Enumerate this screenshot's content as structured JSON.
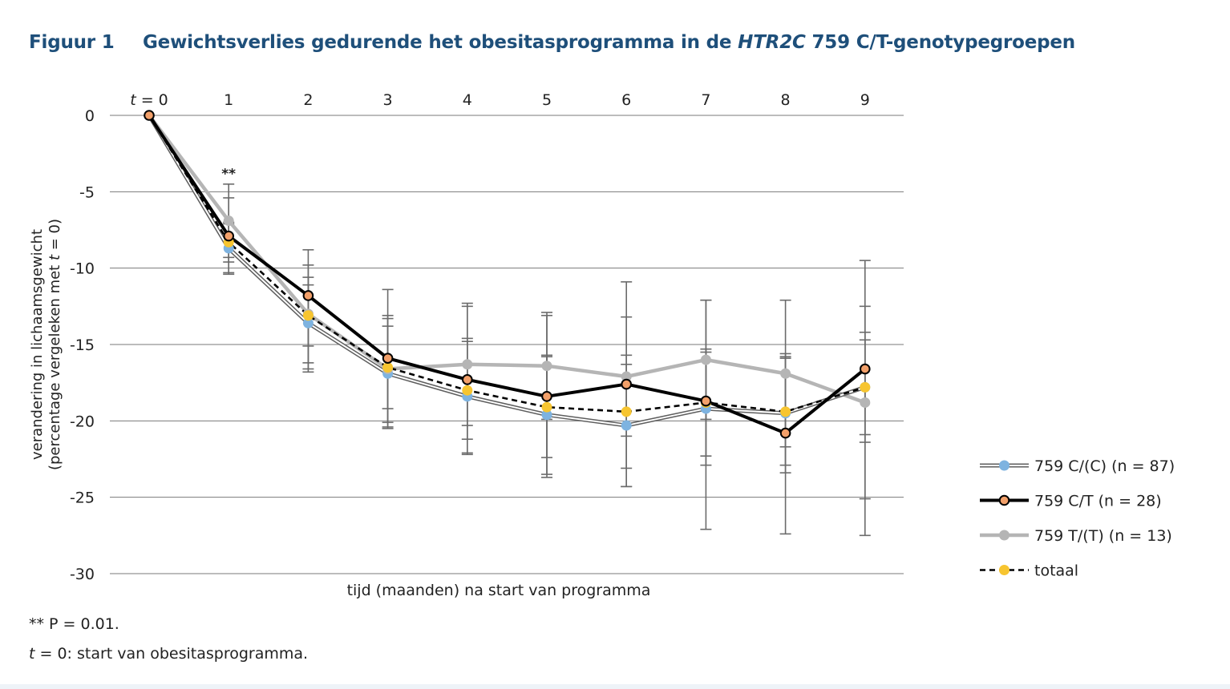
{
  "figure": {
    "label": "Figuur 1",
    "title_before": "Gewichtsverlies gedurende het obesitasprogramma in de ",
    "title_italic": "HTR2C",
    "title_after": " 759 C/T-genotypegroepen"
  },
  "footnotes": {
    "significance": "** P = 0.01.",
    "t_italic": "t",
    "t_rest": " = 0: start van obesitasprogramma."
  },
  "chart_data": {
    "type": "line",
    "x": [
      0,
      1,
      2,
      3,
      4,
      5,
      6,
      7,
      8,
      9
    ],
    "x_tick_labels": [
      "= 0",
      "1",
      "2",
      "3",
      "4",
      "5",
      "6",
      "7",
      "8",
      "9"
    ],
    "x_first_tick_prefix_italic": "t",
    "xlabel": "tijd (maanden) na start van programma",
    "ylabel_line1": "verandering in lichaamsgewicht",
    "ylabel_line2_before": "(percentage vergeleken met ",
    "ylabel_line2_italic": "t",
    "ylabel_line2_after": " = 0)",
    "ylim": [
      -30,
      0
    ],
    "y_ticks": [
      0,
      -5,
      -10,
      -15,
      -20,
      -25,
      -30
    ],
    "grid": true,
    "legend_position": "right",
    "annotations": [
      {
        "x": 1,
        "y": -3.9,
        "text": "**"
      }
    ],
    "series": [
      {
        "name": "759 C/(C) (n = 87)",
        "style": "double",
        "line_color": "#5e5e5e",
        "marker_color": "#7eb3e0",
        "values": [
          0,
          -8.7,
          -13.6,
          -16.9,
          -18.4,
          -19.6,
          -20.3,
          -19.2,
          -19.5,
          -17.8
        ],
        "errors": [
          0,
          1.6,
          3.0,
          3.6,
          3.8,
          3.9,
          4.0,
          3.7,
          3.9,
          3.6
        ]
      },
      {
        "name": "759 C/T (n = 28)",
        "style": "thick",
        "line_color": "#000000",
        "marker_color": "#f2a06a",
        "values": [
          0,
          -7.9,
          -11.8,
          -15.9,
          -17.3,
          -18.4,
          -17.6,
          -18.7,
          -20.8,
          -16.6
        ],
        "errors": [
          0,
          2.5,
          3.0,
          4.5,
          4.8,
          5.3,
          6.7,
          6.6,
          5.0,
          7.1
        ],
        "err_low": [
          0,
          2.5,
          5.0,
          4.5,
          4.8,
          5.3,
          6.7,
          8.4,
          6.6,
          10.9
        ]
      },
      {
        "name": "759 T/(T) (n = 13)",
        "style": "gray",
        "line_color": "#b5b5b5",
        "marker_color": "#b5b5b5",
        "values": [
          0,
          -6.9,
          -13.0,
          -16.6,
          -16.3,
          -16.4,
          -17.1,
          -16.0,
          -16.9,
          -18.8
        ],
        "errors": [
          0,
          2.4,
          3.2,
          3.5,
          4.0,
          3.5,
          3.9,
          3.9,
          4.8,
          6.3
        ]
      },
      {
        "name": "totaal",
        "style": "dashed",
        "line_color": "#000000",
        "marker_color": "#f7c530",
        "values": [
          0,
          -8.3,
          -13.1,
          -16.5,
          -18.0,
          -19.1,
          -19.4,
          -18.8,
          -19.4,
          -17.8
        ],
        "errors": [
          0,
          1.3,
          2.0,
          2.7,
          3.2,
          3.3,
          3.7,
          3.5,
          3.5,
          3.1
        ]
      }
    ]
  }
}
